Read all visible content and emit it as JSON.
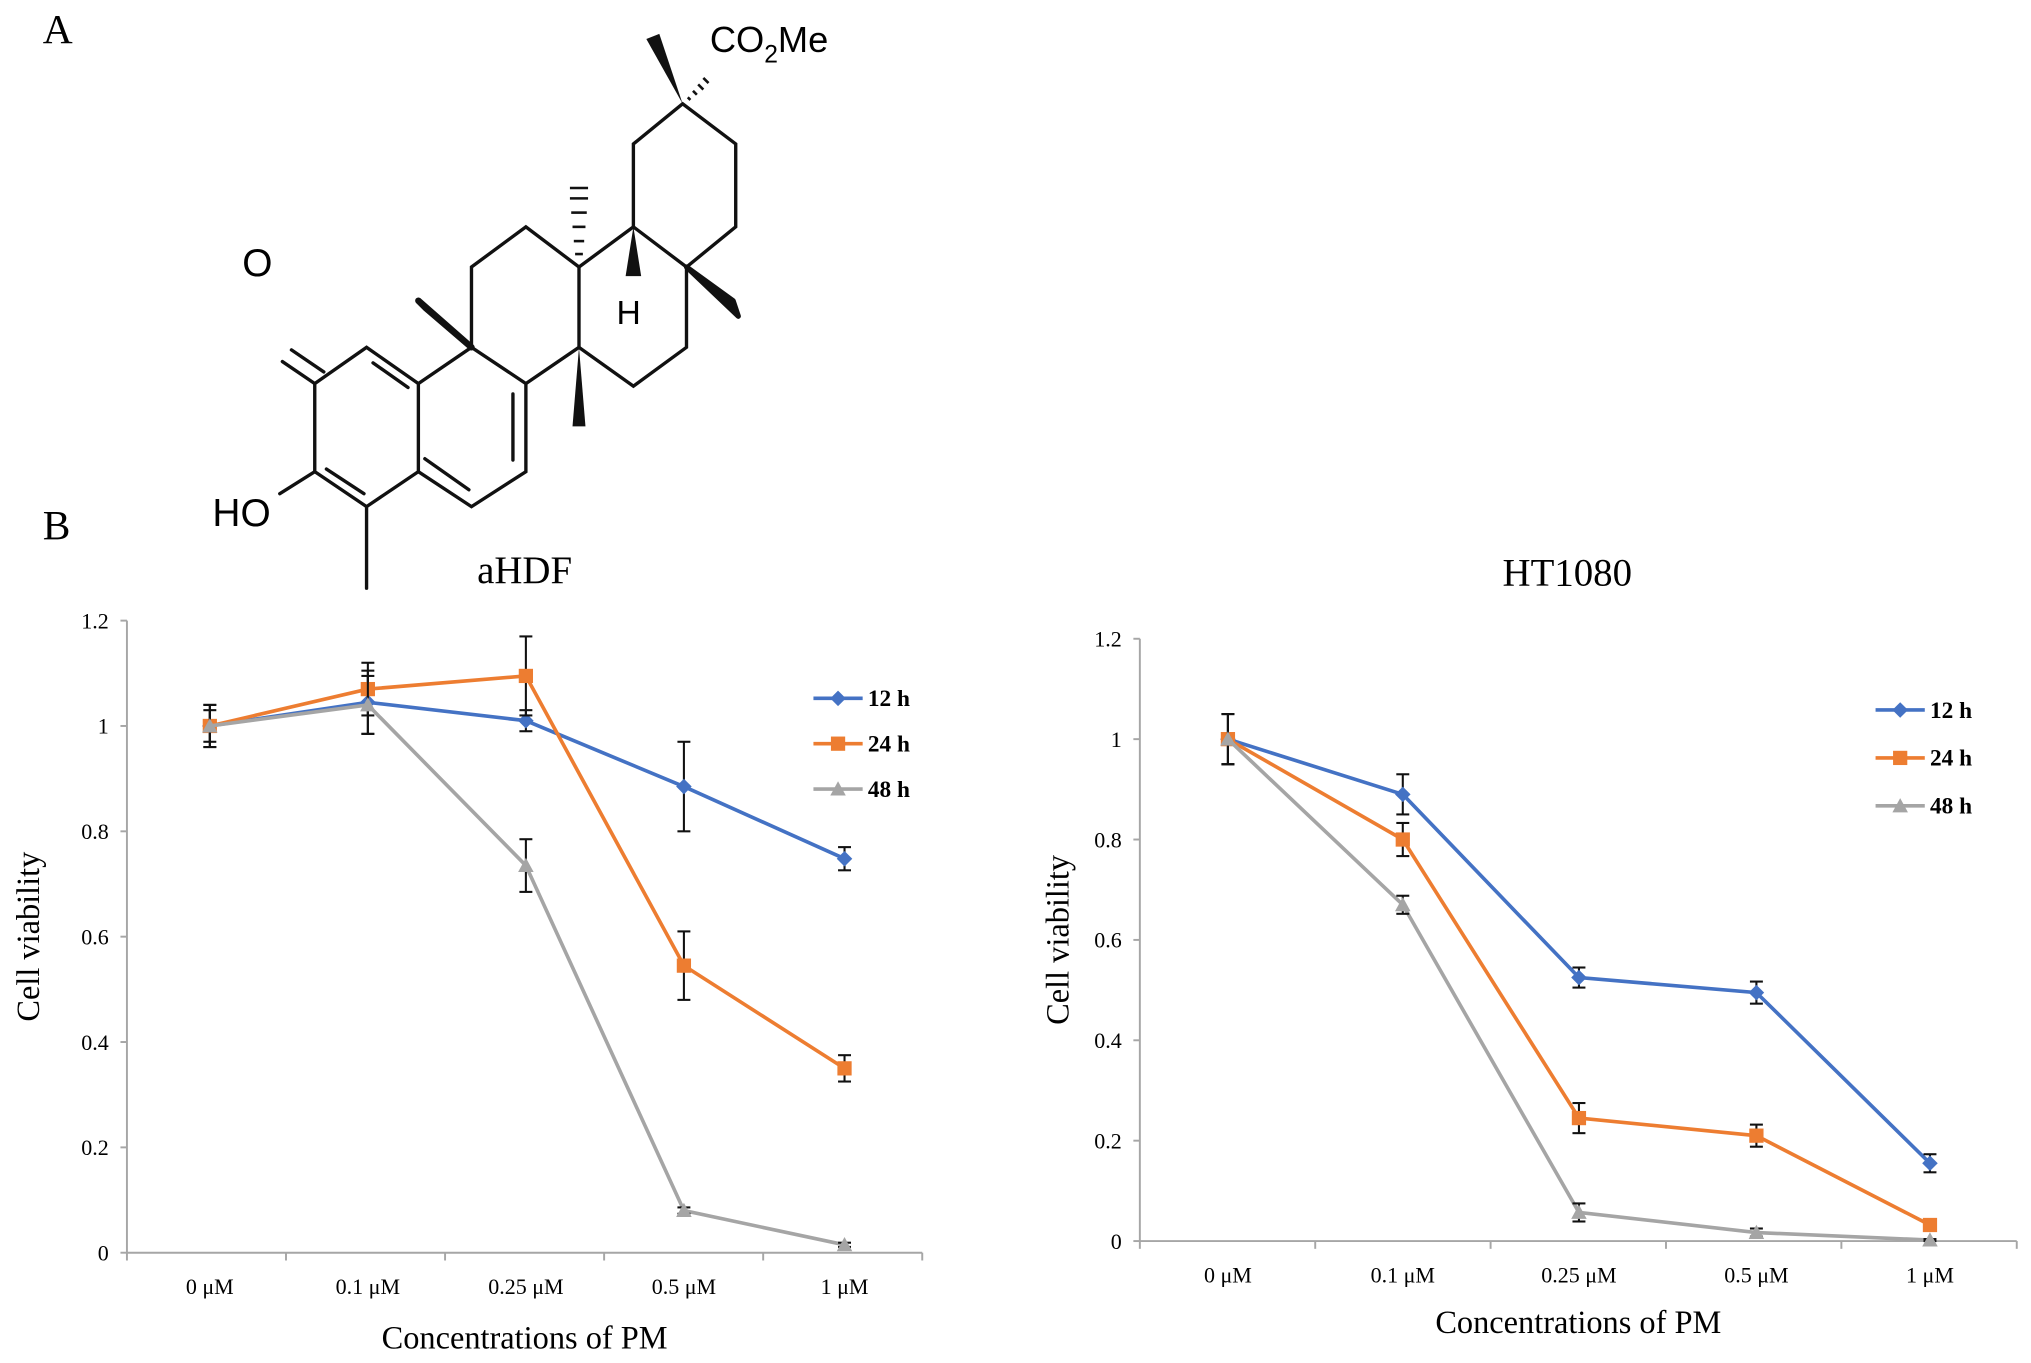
{
  "panel_labels": {
    "a": "A",
    "b": "B"
  },
  "structure": {
    "ketone_label": "O",
    "hydroxyl_label": "HO",
    "hydrogen_label": "H",
    "ester_label_prefix": "CO",
    "ester_label_sub": "2",
    "ester_label_suffix": "Me"
  },
  "chart_data": [
    {
      "type": "line",
      "title": "aHDF",
      "xlabel": "Concentrations of PM",
      "ylabel": "Cell viability",
      "categories": [
        "0 μM",
        "0.1 μM",
        "0.25 μM",
        "0.5 μM",
        "1 μM"
      ],
      "ylim": [
        0,
        1.2
      ],
      "yticks": [
        "0",
        "0.2",
        "0.4",
        "0.6",
        "0.8",
        "1",
        "1.2"
      ],
      "legend_position": "top-right",
      "series": [
        {
          "name": "12 h",
          "color": "#4472C4",
          "marker": "diamond",
          "values": [
            1.0,
            1.045,
            1.01,
            0.885,
            0.748
          ],
          "errors": [
            0.04,
            0.06,
            0.02,
            0.085,
            0.022
          ]
        },
        {
          "name": "24 h",
          "color": "#ED7D31",
          "marker": "square",
          "values": [
            1.0,
            1.07,
            1.095,
            0.545,
            0.35
          ],
          "errors": [
            0.03,
            0.05,
            0.075,
            0.065,
            0.025
          ]
        },
        {
          "name": "48 h",
          "color": "#A5A5A5",
          "marker": "triangle",
          "values": [
            1.0,
            1.04,
            0.735,
            0.08,
            0.015
          ],
          "errors": [
            0.04,
            0.055,
            0.05,
            0.006,
            0.004
          ]
        }
      ]
    },
    {
      "type": "line",
      "title": "HT1080",
      "xlabel": "Concentrations of PM",
      "ylabel": "Cell viability",
      "categories": [
        "0 μM",
        "0.1 μM",
        "0.25 μM",
        "0.5 μM",
        "1 μM"
      ],
      "ylim": [
        0,
        1.2
      ],
      "yticks": [
        "0",
        "0.2",
        "0.4",
        "0.6",
        "0.8",
        "1",
        "1.2"
      ],
      "legend_position": "top-right",
      "series": [
        {
          "name": "12 h",
          "color": "#4472C4",
          "marker": "diamond",
          "values": [
            1.0,
            0.89,
            0.525,
            0.495,
            0.155
          ],
          "errors": [
            0.05,
            0.04,
            0.02,
            0.022,
            0.018
          ]
        },
        {
          "name": "24 h",
          "color": "#ED7D31",
          "marker": "square",
          "values": [
            1.0,
            0.8,
            0.245,
            0.21,
            0.032
          ],
          "errors": [
            0.05,
            0.033,
            0.03,
            0.022,
            0.005
          ]
        },
        {
          "name": "48 h",
          "color": "#A5A5A5",
          "marker": "triangle",
          "values": [
            1.0,
            0.67,
            0.057,
            0.017,
            0.002
          ],
          "errors": [
            0.05,
            0.018,
            0.018,
            0.008,
            0.002
          ]
        }
      ]
    }
  ]
}
